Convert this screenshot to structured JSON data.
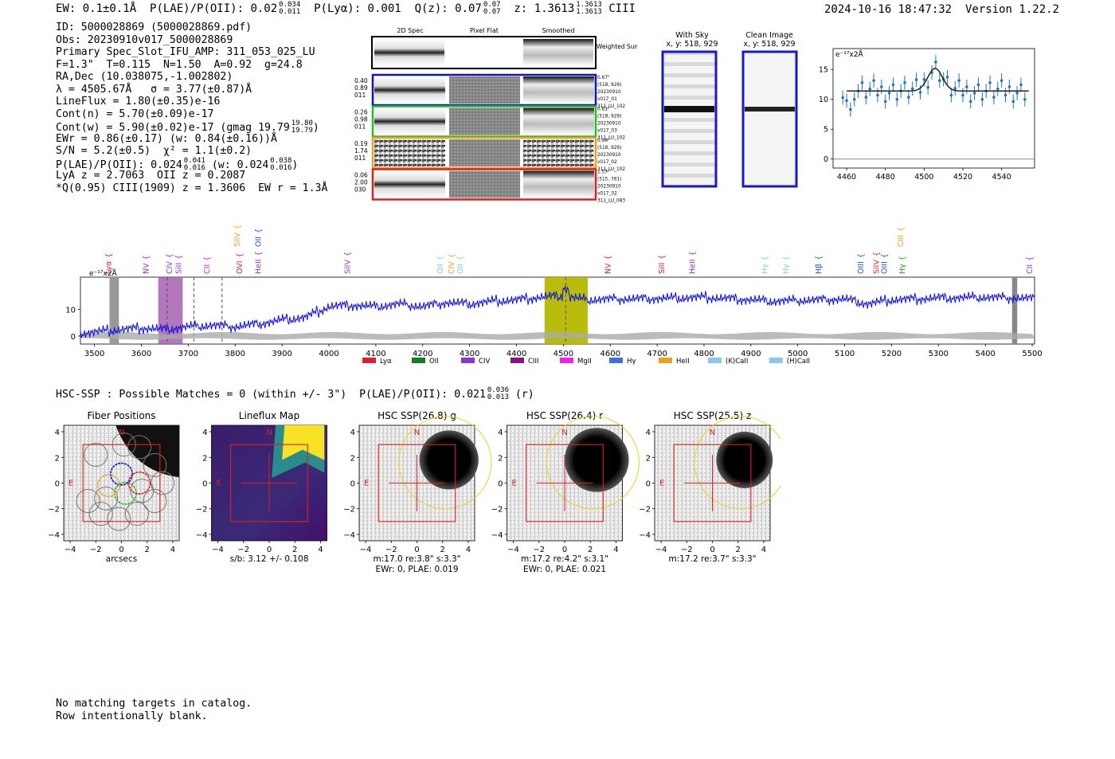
{
  "header": {
    "ew": "EW: 0.1±0.1Å",
    "plae_label": "P(LAE)/P(OII): 0.02",
    "plae_hi": "0.034",
    "plae_lo": "0.011",
    "plya": "P(Lyα): 0.001",
    "qz_label": "Q(z): 0.07",
    "qz_hi": "0.07",
    "qz_lo": "0.07",
    "z_label": "z: 1.3613",
    "z_hi": "1.3613",
    "z_lo": "1.3613",
    "z_line": "CIII",
    "timestamp": "2024-10-16 18:47:32",
    "version": "Version 1.22.2"
  },
  "info": {
    "id": "ID: 5000028869 (5000028869.pdf)",
    "obs": "Obs: 20230910v017_5000028869",
    "primary": "Primary Spec_Slot_IFU_AMP: 311_053_025_LU",
    "fwhm": "F=1.3\"  T=0.115  N=1.50  A=0.92  g=24.8",
    "radec": "RA,Dec (10.038075,-1.002802)",
    "lambda": "λ = 4505.67Å   σ = 3.77(±0.87)Å",
    "lineflux": "LineFlux = 1.80(±0.35)e-16",
    "contn": "Cont(n) = 5.70(±0.09)e-17",
    "contw": "Cont(w) = 5.90(±0.02)e-17 (gmag 19.79",
    "contw_hi": "19.80",
    "contw_lo": "19.79",
    "contw_end": ")",
    "ewr": "EWr = 0.86(±0.17) (w: 0.84(±0.16))Å",
    "sn": "S/N = 5.2(±0.5)  χ² = 1.1(±0.2)",
    "plae": "P(LAE)/P(OII): 0.024",
    "plae_hi": "0.041",
    "plae_lo": "0.016",
    "plae_w": " (w: 0.024",
    "plae_w_hi": "0.038",
    "plae_w_lo": "0.016",
    "plae_end": ")",
    "lya": "LyA z = 2.7063  OII z = 0.2087",
    "q": "*Q(0.95) CIII(1909) z = 1.3606  EW r = 1.3Å"
  },
  "cutouts": {
    "col_titles": [
      "2D Spec",
      "Pixel Flat",
      "Smoothed"
    ],
    "weighted_sum": "Weighted Sum",
    "rows": [
      {
        "left": [
          "0.40",
          "0.89",
          "011"
        ],
        "right": [
          "0.67\"",
          "(518, 929)",
          "20230910",
          "v017_01",
          "311_LU_102"
        ],
        "color": "#1010c8"
      },
      {
        "left": [
          "0.26",
          "0.98",
          "011"
        ],
        "right": [
          "0.81\"",
          "(518, 929)",
          "20230910",
          "v017_03",
          "311_LU_102"
        ],
        "color": "#20c020"
      },
      {
        "left": [
          "0.19",
          "1.74",
          "011"
        ],
        "right": [
          "0.98\"",
          "(518, 929)",
          "20230910",
          "v017_02",
          "311_LU_102"
        ],
        "color": "#f0a020"
      },
      {
        "left": [
          "0.06",
          "2.00",
          "030"
        ],
        "right": [
          "1.57\"",
          "(515, 761)",
          "20230910",
          "v017_02",
          "311_LU_083"
        ],
        "color": "#e02020"
      }
    ]
  },
  "sky": {
    "with_sky_title": "With Sky",
    "with_sky_coords": "x, y: 518, 929",
    "clean_title": "Clean Image",
    "clean_coords": "x, y: 518, 929"
  },
  "zoom_chart": {
    "unit_label": "e⁻¹⁷x2Å",
    "x_ticks": [
      4460,
      4480,
      4500,
      4520,
      4540
    ],
    "y_ticks": [
      0,
      5,
      10,
      15
    ]
  },
  "chart_data": {
    "type": "line",
    "title": "",
    "unit_label": "e⁻¹⁷x2Å",
    "xlim": [
      3470,
      5505
    ],
    "ylim": [
      -3,
      22
    ],
    "x_ticks": [
      3500,
      3600,
      3700,
      3800,
      3900,
      4000,
      4100,
      4200,
      4300,
      4400,
      4500,
      4600,
      4700,
      4800,
      4900,
      5000,
      5100,
      5200,
      5300,
      5400,
      5500
    ],
    "y_ticks": [
      0,
      10
    ],
    "series": [
      {
        "x": [
          3470,
          3530,
          3600,
          3650,
          3700,
          3750,
          3800,
          3850,
          3900,
          3950,
          4000,
          4050,
          4100,
          4150,
          4200,
          4250,
          4300,
          4350,
          4400,
          4450,
          4500,
          4550,
          4600,
          4700,
          4800,
          4900,
          4950,
          5000,
          5100,
          5150,
          5200,
          5300,
          5400,
          5500
        ],
        "values": [
          1,
          2,
          3,
          2.5,
          3.5,
          4,
          3.5,
          4.5,
          6,
          7,
          11,
          11.5,
          11,
          12,
          11,
          12.5,
          12,
          13,
          13.5,
          14.5,
          15,
          13.5,
          13.8,
          14,
          14.5,
          13.5,
          13,
          13.3,
          13.8,
          12,
          13.5,
          14.2,
          14.5,
          14
        ]
      }
    ],
    "line_ids": [
      {
        "name": "Lyα",
        "x": 3530,
        "color": "#e0202a",
        "row": 2
      },
      {
        "name": "NV",
        "x": 3610,
        "color": "#8c32e0",
        "row": 2
      },
      {
        "name": "CIV",
        "x": 3660,
        "color": "#8c32e0",
        "row": 2
      },
      {
        "name": "SiII",
        "x": 3680,
        "color": "#8c32e0",
        "row": 2
      },
      {
        "name": "CII",
        "x": 3740,
        "color": "#e020e0",
        "row": 2
      },
      {
        "name": "SiIV",
        "x": 3805,
        "color": "#f0a020",
        "row": 0
      },
      {
        "name": "OVI",
        "x": 3810,
        "color": "#e0202a",
        "row": 2
      },
      {
        "name": "OII",
        "x": 3850,
        "color": "#2050e0",
        "row": 0
      },
      {
        "name": "HeII",
        "x": 3850,
        "color": "#8c32e0",
        "row": 2
      },
      {
        "name": "SiIV",
        "x": 4040,
        "color": "#8c32e0",
        "row": 2
      },
      {
        "name": "OII",
        "x": 4238,
        "color": "#88c8f0",
        "row": 2
      },
      {
        "name": "CIV",
        "x": 4262,
        "color": "#f0a020",
        "row": 2
      },
      {
        "name": "OII",
        "x": 4280,
        "color": "#88c8f0",
        "row": 2
      },
      {
        "name": "NV",
        "x": 4595,
        "color": "#e0202a",
        "row": 2
      },
      {
        "name": "SiII",
        "x": 4710,
        "color": "#e0202a",
        "row": 2
      },
      {
        "name": "HeII",
        "x": 4775,
        "color": "#8c32e0",
        "row": 2
      },
      {
        "name": "Hγ",
        "x": 4930,
        "color": "#88c8f0",
        "row": 2
      },
      {
        "name": "Hγ",
        "x": 4975,
        "color": "#88c8f0",
        "row": 2
      },
      {
        "name": "Hβ",
        "x": 5045,
        "color": "#2050e0",
        "row": 2
      },
      {
        "name": "OIII",
        "x": 5135,
        "color": "#2050e0",
        "row": 2
      },
      {
        "name": "SiIV",
        "x": 5168,
        "color": "#e0202a",
        "row": 2
      },
      {
        "name": "OIII",
        "x": 5185,
        "color": "#2050e0",
        "row": 2
      },
      {
        "name": "CIII",
        "x": 5220,
        "color": "#f0a020",
        "row": 0
      },
      {
        "name": "Hγ",
        "x": 5223,
        "color": "#20a020",
        "row": 2
      },
      {
        "name": "CII",
        "x": 5495,
        "color": "#8c32e0",
        "row": 2
      }
    ],
    "legend": [
      {
        "name": "Lyα",
        "color": "#e0202a"
      },
      {
        "name": "OII",
        "color": "#108020"
      },
      {
        "name": "CIV",
        "color": "#8c32e0"
      },
      {
        "name": "CIII",
        "color": "#8c108c"
      },
      {
        "name": "MgII",
        "color": "#f020f0"
      },
      {
        "name": "Hγ",
        "color": "#4070e0"
      },
      {
        "name": "HeII",
        "color": "#f0a020"
      },
      {
        "name": "(K)CaII",
        "color": "#88c8f0"
      },
      {
        "name": "(H)CaII",
        "color": "#88c8f0"
      }
    ]
  },
  "hsc": {
    "summary": "HSC-SSP : Possible Matches = 0 (within +/- 3\")  P(LAE)/P(OII): 0.021",
    "summary_hi": "0.036",
    "summary_lo": "0.013",
    "summary_end": " (r)",
    "panels": [
      {
        "title": "Fiber Positions",
        "caption1": "arcsecs",
        "caption2": ""
      },
      {
        "title": "Lineflux Map",
        "caption1": "s/b: 3.12 +/- 0.108",
        "caption2": ""
      },
      {
        "title": "HSC SSP(26.8) g",
        "caption1": "m:17.0  re:3.8\"  s:3.3\"",
        "caption2": "EWr: 0, PLAE: 0.019"
      },
      {
        "title": "HSC SSP(26.4) r",
        "caption1": "m:17.2  re:4.2\"  s:3.1\"",
        "caption2": "EWr: 0, PLAE: 0.021"
      },
      {
        "title": "HSC SSP(25.5) z",
        "caption1": "m:17.2  re:3.7\"  s:3.3\"",
        "caption2": ""
      }
    ],
    "axis_ticks": [
      "4",
      "2",
      "0",
      "−2",
      "−4"
    ],
    "x_ticks": [
      "−4",
      "−2",
      "0",
      "2",
      "4"
    ],
    "north": "N",
    "east": "E"
  },
  "footer": {
    "line1": "No matching targets in catalog.",
    "line2": "Row intentionally blank."
  }
}
